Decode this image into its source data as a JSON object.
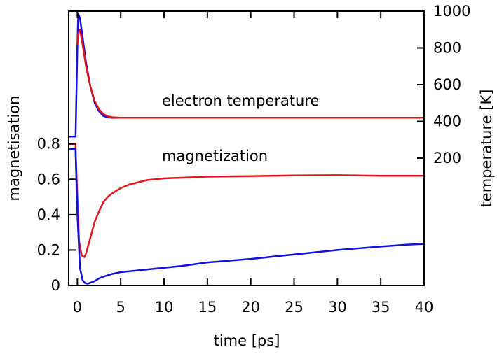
{
  "chart_data": {
    "type": "line",
    "title": "",
    "xlabel": "time [ps]",
    "ylabel": "magnetisation",
    "y2label": "temperature [K]",
    "xlim": [
      -1,
      40
    ],
    "ylim": [
      0,
      1.55
    ],
    "y2lim": [
      200,
      1000
    ],
    "x_ticks": [
      0,
      5,
      10,
      15,
      20,
      25,
      30,
      35,
      40
    ],
    "y_ticks": [
      0,
      0.2,
      0.4,
      0.6,
      0.8
    ],
    "y2_ticks": [
      200,
      400,
      600,
      800,
      1000
    ],
    "annotations": {
      "electron_temperature": "electron temperature",
      "magnetization": "magnetization"
    },
    "colors": {
      "red": "#e3151a",
      "blue": "#1010e0"
    },
    "series": [
      {
        "axis": "y2",
        "color": "#1010e0",
        "x": [
          -1,
          -0.2,
          -0.2,
          0,
          0.1,
          0.3,
          0.6,
          1,
          1.5,
          2,
          2.5,
          3,
          3.5,
          4,
          5,
          10,
          20,
          30,
          40
        ],
        "values": [
          317,
          317,
          330,
          820,
          985,
          960,
          860,
          720,
          590,
          500,
          455,
          430,
          422,
          420,
          420,
          420,
          420,
          420,
          420
        ]
      },
      {
        "axis": "y2",
        "color": "#e3151a",
        "x": [
          0,
          0.1,
          0.3,
          0.6,
          1,
          1.5,
          2,
          2.5,
          3,
          3.5,
          4,
          5,
          10,
          20,
          30,
          40
        ],
        "values": [
          820,
          880,
          900,
          820,
          700,
          590,
          510,
          465,
          440,
          428,
          423,
          420,
          420,
          420,
          420,
          420
        ]
      },
      {
        "axis": "y",
        "color": "#e3151a",
        "x": [
          -1,
          -0.2,
          -0.2,
          0,
          0.2,
          0.5,
          0.8,
          1,
          1.5,
          2,
          2.5,
          3,
          3.5,
          4,
          5,
          6,
          8,
          10,
          15,
          20,
          25,
          30,
          35,
          40
        ],
        "values": [
          0.8,
          0.8,
          0.76,
          0.5,
          0.25,
          0.17,
          0.16,
          0.18,
          0.27,
          0.36,
          0.42,
          0.47,
          0.5,
          0.52,
          0.55,
          0.57,
          0.595,
          0.605,
          0.615,
          0.618,
          0.622,
          0.623,
          0.62,
          0.62
        ]
      },
      {
        "axis": "y",
        "color": "#1010e0",
        "x": [
          -1,
          -0.2,
          -0.2,
          0,
          0.3,
          0.6,
          0.9,
          1.2,
          1.5,
          2,
          2.5,
          3,
          4,
          5,
          7,
          10,
          12,
          15,
          20,
          25,
          30,
          35,
          38,
          40
        ],
        "values": [
          0.77,
          0.77,
          0.74,
          0.4,
          0.1,
          0.03,
          0.013,
          0.01,
          0.015,
          0.025,
          0.04,
          0.05,
          0.065,
          0.075,
          0.085,
          0.1,
          0.11,
          0.13,
          0.15,
          0.175,
          0.2,
          0.22,
          0.23,
          0.235
        ]
      }
    ]
  }
}
